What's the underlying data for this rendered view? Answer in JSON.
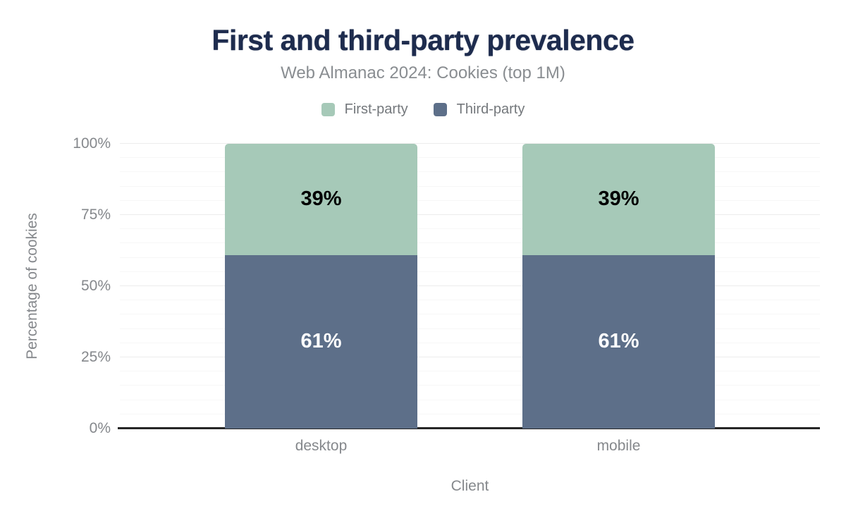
{
  "header": {
    "title": "First and third-party prevalence",
    "subtitle": "Web Almanac 2024: Cookies (top 1M)"
  },
  "legend": {
    "items": [
      {
        "label": "First-party",
        "color": "#a6c9b8"
      },
      {
        "label": "Third-party",
        "color": "#5d6f89"
      }
    ]
  },
  "chart_data": {
    "type": "bar",
    "stacked": true,
    "title": "First and third-party prevalence",
    "subtitle": "Web Almanac 2024: Cookies (top 1M)",
    "xlabel": "Client",
    "ylabel": "Percentage of cookies",
    "categories": [
      "desktop",
      "mobile"
    ],
    "series": [
      {
        "name": "Third-party",
        "color": "#5d6f89",
        "values": [
          61,
          61
        ],
        "data_labels": [
          "61%",
          "61%"
        ],
        "label_color": "#ffffff"
      },
      {
        "name": "First-party",
        "color": "#a6c9b8",
        "values": [
          39,
          39
        ],
        "data_labels": [
          "39%",
          "39%"
        ],
        "label_color": "#000000"
      }
    ],
    "ylim": [
      0,
      100
    ],
    "yticks": [
      {
        "value": 0,
        "label": "0%"
      },
      {
        "value": 25,
        "label": "25%"
      },
      {
        "value": 50,
        "label": "50%"
      },
      {
        "value": 75,
        "label": "75%"
      },
      {
        "value": 100,
        "label": "100%"
      }
    ],
    "grid": {
      "minor_step": 5,
      "major_step": 25,
      "minor_color": "#f7f7f7",
      "major_color": "#ececec"
    },
    "legend_position": "top",
    "colors": {
      "title": "#1e2c4e",
      "subtitle": "#898d91",
      "tick_label": "#85888c",
      "axis_title": "#85888c",
      "axis_line": "#262626",
      "background": "#ffffff"
    }
  }
}
